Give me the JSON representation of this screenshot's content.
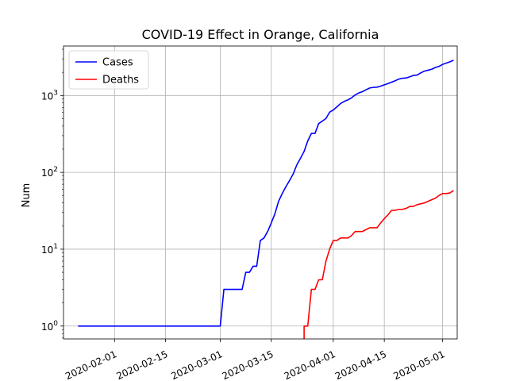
{
  "chart_data": {
    "type": "line",
    "title": "COVID-19 Effect in Orange, California",
    "xlabel": "",
    "ylabel": "Num",
    "yscale": "log",
    "ylim": [
      0.68,
      4400
    ],
    "xlim": [
      "2020-01-18",
      "2020-05-05"
    ],
    "grid": true,
    "legend": {
      "position": "upper-left",
      "entries": [
        "Cases",
        "Deaths"
      ]
    },
    "x_ticks": [
      "2020-02-01",
      "2020-02-15",
      "2020-03-01",
      "2020-03-15",
      "2020-04-01",
      "2020-04-15",
      "2020-05-01"
    ],
    "y_ticks": [
      {
        "value": 1,
        "label": "10^0"
      },
      {
        "value": 10,
        "label": "10^1"
      },
      {
        "value": 100,
        "label": "10^2"
      },
      {
        "value": 1000,
        "label": "10^3"
      }
    ],
    "series": [
      {
        "name": "Cases",
        "color": "#0000ff",
        "points": [
          [
            "2020-01-22",
            1
          ],
          [
            "2020-01-30",
            1
          ],
          [
            "2020-02-10",
            1
          ],
          [
            "2020-02-20",
            1
          ],
          [
            "2020-03-01",
            1
          ],
          [
            "2020-03-02",
            3
          ],
          [
            "2020-03-07",
            3
          ],
          [
            "2020-03-08",
            5
          ],
          [
            "2020-03-09",
            5
          ],
          [
            "2020-03-10",
            6
          ],
          [
            "2020-03-11",
            6
          ],
          [
            "2020-03-12",
            13
          ],
          [
            "2020-03-13",
            14
          ],
          [
            "2020-03-14",
            17
          ],
          [
            "2020-03-15",
            22
          ],
          [
            "2020-03-16",
            29
          ],
          [
            "2020-03-17",
            42
          ],
          [
            "2020-03-18",
            53
          ],
          [
            "2020-03-19",
            65
          ],
          [
            "2020-03-20",
            78
          ],
          [
            "2020-03-21",
            95
          ],
          [
            "2020-03-22",
            125
          ],
          [
            "2020-03-23",
            152
          ],
          [
            "2020-03-24",
            187
          ],
          [
            "2020-03-25",
            256
          ],
          [
            "2020-03-26",
            321
          ],
          [
            "2020-03-27",
            321
          ],
          [
            "2020-03-28",
            431
          ],
          [
            "2020-03-29",
            464
          ],
          [
            "2020-03-30",
            502
          ],
          [
            "2020-03-31",
            606
          ],
          [
            "2020-04-01",
            647
          ],
          [
            "2020-04-02",
            711
          ],
          [
            "2020-04-03",
            786
          ],
          [
            "2020-04-04",
            837
          ],
          [
            "2020-04-05",
            876
          ],
          [
            "2020-04-06",
            932
          ],
          [
            "2020-04-07",
            1016
          ],
          [
            "2020-04-08",
            1079
          ],
          [
            "2020-04-09",
            1121
          ],
          [
            "2020-04-10",
            1187
          ],
          [
            "2020-04-11",
            1252
          ],
          [
            "2020-04-12",
            1277
          ],
          [
            "2020-04-13",
            1283
          ],
          [
            "2020-04-14",
            1323
          ],
          [
            "2020-04-15",
            1376
          ],
          [
            "2020-04-16",
            1425
          ],
          [
            "2020-04-17",
            1491
          ],
          [
            "2020-04-18",
            1556
          ],
          [
            "2020-04-19",
            1636
          ],
          [
            "2020-04-20",
            1676
          ],
          [
            "2020-04-21",
            1691
          ],
          [
            "2020-04-22",
            1751
          ],
          [
            "2020-04-23",
            1827
          ],
          [
            "2020-04-24",
            1845
          ],
          [
            "2020-04-25",
            1969
          ],
          [
            "2020-04-26",
            2074
          ],
          [
            "2020-04-27",
            2133
          ],
          [
            "2020-04-28",
            2196
          ],
          [
            "2020-04-29",
            2314
          ],
          [
            "2020-04-30",
            2393
          ],
          [
            "2020-05-01",
            2537
          ],
          [
            "2020-05-02",
            2636
          ],
          [
            "2020-05-03",
            2743
          ],
          [
            "2020-05-04",
            2874
          ]
        ]
      },
      {
        "name": "Deaths",
        "color": "#ff0000",
        "points": [
          [
            "2020-03-24",
            0.5
          ],
          [
            "2020-03-24",
            1
          ],
          [
            "2020-03-25",
            1
          ],
          [
            "2020-03-26",
            3
          ],
          [
            "2020-03-27",
            3
          ],
          [
            "2020-03-28",
            4
          ],
          [
            "2020-03-29",
            4
          ],
          [
            "2020-03-30",
            7
          ],
          [
            "2020-03-31",
            10
          ],
          [
            "2020-04-01",
            13
          ],
          [
            "2020-04-02",
            13
          ],
          [
            "2020-04-03",
            14
          ],
          [
            "2020-04-04",
            14
          ],
          [
            "2020-04-05",
            14
          ],
          [
            "2020-04-06",
            15
          ],
          [
            "2020-04-07",
            17
          ],
          [
            "2020-04-08",
            17
          ],
          [
            "2020-04-09",
            17
          ],
          [
            "2020-04-10",
            18
          ],
          [
            "2020-04-11",
            19
          ],
          [
            "2020-04-12",
            19
          ],
          [
            "2020-04-13",
            19
          ],
          [
            "2020-04-14",
            22
          ],
          [
            "2020-04-15",
            25
          ],
          [
            "2020-04-16",
            28
          ],
          [
            "2020-04-17",
            32
          ],
          [
            "2020-04-18",
            32
          ],
          [
            "2020-04-19",
            33
          ],
          [
            "2020-04-20",
            33
          ],
          [
            "2020-04-21",
            34
          ],
          [
            "2020-04-22",
            36
          ],
          [
            "2020-04-23",
            36
          ],
          [
            "2020-04-24",
            38
          ],
          [
            "2020-04-25",
            39
          ],
          [
            "2020-04-26",
            40
          ],
          [
            "2020-04-27",
            42
          ],
          [
            "2020-04-28",
            44
          ],
          [
            "2020-04-29",
            46
          ],
          [
            "2020-04-30",
            50
          ],
          [
            "2020-05-01",
            53
          ],
          [
            "2020-05-02",
            53
          ],
          [
            "2020-05-03",
            54
          ],
          [
            "2020-05-04",
            58
          ]
        ]
      }
    ]
  }
}
